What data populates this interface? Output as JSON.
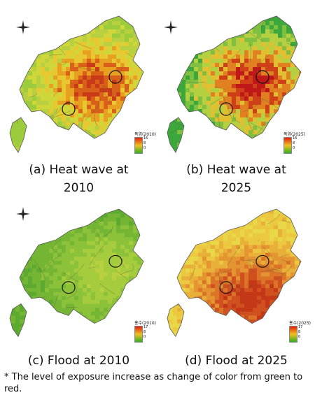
{
  "panels": [
    {
      "id": "a",
      "caption_line1": "(a) Heat wave at",
      "caption_line2": "2010",
      "legend_title": "폭염(2010)",
      "legend_ticks": [
        "16",
        "8",
        "0"
      ],
      "legend_colors": [
        "#e02010",
        "#f0c020",
        "#30b020"
      ],
      "palette": [
        "#9ccc3c",
        "#b8d040",
        "#cfd63a",
        "#e8c830",
        "#e8a020",
        "#d86018",
        "#c83a18"
      ]
    },
    {
      "id": "b",
      "caption_line1": "(b) Heat wave at",
      "caption_line2": "2025",
      "legend_title": "폭염(2025)",
      "legend_ticks": [
        "16",
        "8",
        "0"
      ],
      "legend_colors": [
        "#e02010",
        "#f0c020",
        "#30b020"
      ],
      "palette": [
        "#3ca83c",
        "#80c040",
        "#b4d040",
        "#e0c030",
        "#e08020",
        "#d04018",
        "#c01818"
      ]
    },
    {
      "id": "c",
      "caption_line1": "(c) Flood at 2010",
      "caption_line2": "",
      "legend_title": "홍수(2010)",
      "legend_ticks": [
        "17",
        "8",
        "0"
      ],
      "legend_colors": [
        "#e02010",
        "#f0c020",
        "#30b020"
      ],
      "palette": [
        "#5caa30",
        "#74b634",
        "#8cc23a",
        "#a4cc3c",
        "#b8d040",
        "#c8c838",
        "#d8a830"
      ]
    },
    {
      "id": "d",
      "caption_line1": "(d) Flood at 2025",
      "caption_line2": "",
      "legend_title": "홍수(2025)",
      "legend_ticks": [
        "17",
        "8",
        "0"
      ],
      "legend_colors": [
        "#e02010",
        "#f0c020",
        "#30b020"
      ],
      "palette": [
        "#e8d848",
        "#ecc840",
        "#e8b038",
        "#e49430",
        "#dc7428",
        "#d05020",
        "#c43818"
      ]
    }
  ],
  "footnote": "* The level of exposure increase as change of color from green to red."
}
